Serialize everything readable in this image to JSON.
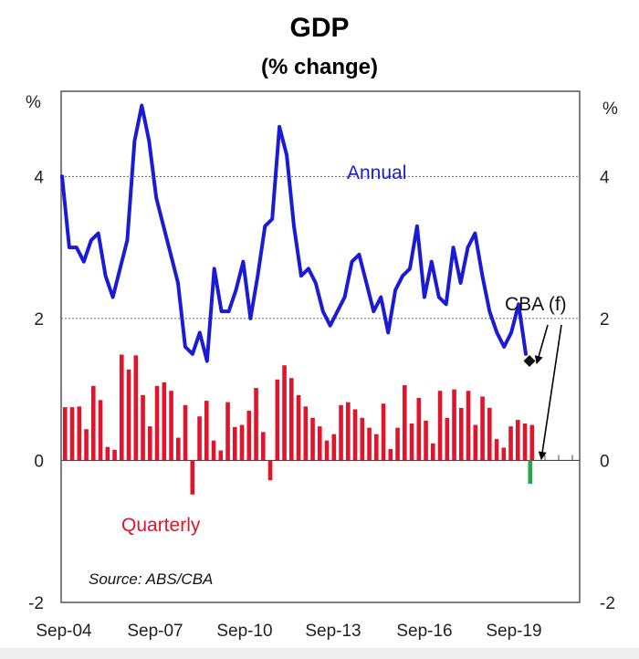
{
  "chart_data": {
    "type": "bar+line",
    "title": "GDP",
    "subtitle": "(% change)",
    "ylabel_left": "%",
    "ylabel_right": "%",
    "ylim": [
      -2,
      5.2
    ],
    "yticks": [
      -2,
      0,
      2,
      4
    ],
    "xtick_labels": [
      "Sep-04",
      "Sep-07",
      "Sep-10",
      "Sep-13",
      "Sep-16",
      "Sep-19"
    ],
    "source": "Source: ABS/CBA",
    "colors": {
      "annual": "#1b1bd6",
      "quarterly": "#e0142a",
      "forecast_bar": "#22a84a",
      "forecast_point": "#111111",
      "grid": "#666666"
    },
    "annotations": {
      "annual_label": "Annual",
      "quarterly_label": "Quarterly",
      "forecast_label": "CBA (f)"
    },
    "series": [
      {
        "name": "Annual",
        "type": "line",
        "values": [
          4.0,
          3.0,
          3.0,
          2.8,
          3.1,
          3.2,
          2.6,
          2.3,
          2.7,
          3.1,
          4.5,
          5.0,
          4.5,
          3.7,
          3.3,
          2.9,
          2.5,
          1.6,
          1.5,
          1.8,
          1.4,
          2.7,
          2.1,
          2.1,
          2.4,
          2.8,
          2.0,
          2.6,
          3.3,
          3.4,
          4.7,
          4.3,
          3.3,
          2.6,
          2.7,
          2.5,
          2.1,
          1.9,
          2.1,
          2.3,
          2.8,
          2.9,
          2.5,
          2.1,
          2.3,
          1.8,
          2.4,
          2.6,
          2.7,
          3.3,
          2.3,
          2.8,
          2.3,
          2.2,
          3.0,
          2.5,
          3.0,
          3.2,
          2.6,
          2.1,
          1.8,
          1.6,
          1.8,
          2.2,
          1.5
        ]
      },
      {
        "name": "Quarterly",
        "type": "bar",
        "values": [
          0.75,
          0.75,
          0.76,
          0.44,
          1.05,
          0.85,
          0.19,
          0.15,
          1.49,
          1.28,
          1.48,
          0.92,
          0.48,
          1.05,
          1.1,
          0.98,
          0.32,
          0.78,
          -0.48,
          0.62,
          0.84,
          0.28,
          0.14,
          0.82,
          0.47,
          0.5,
          0.7,
          1.02,
          0.4,
          -0.28,
          1.14,
          1.34,
          1.16,
          0.92,
          0.76,
          0.6,
          0.48,
          0.28,
          0.37,
          0.78,
          0.82,
          0.72,
          0.6,
          0.46,
          0.37,
          0.8,
          0.16,
          0.46,
          1.06,
          0.52,
          0.88,
          0.56,
          0.24,
          0.98,
          0.6,
          1.0,
          0.74,
          0.98,
          0.5,
          0.9,
          0.74,
          0.3,
          0.18,
          0.48,
          0.57,
          0.52,
          0.5
        ]
      },
      {
        "name": "CBA (f) quarterly",
        "type": "bar",
        "values": [
          -0.33
        ]
      },
      {
        "name": "CBA (f) annual",
        "type": "point",
        "values": [
          1.4
        ]
      }
    ]
  }
}
